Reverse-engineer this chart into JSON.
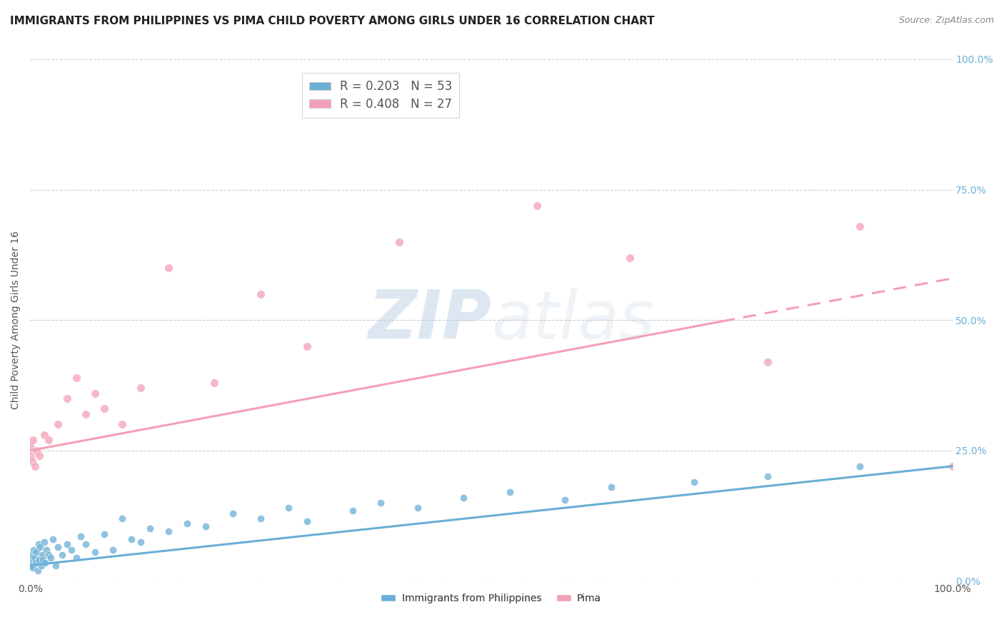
{
  "title": "IMMIGRANTS FROM PHILIPPINES VS PIMA CHILD POVERTY AMONG GIRLS UNDER 16 CORRELATION CHART",
  "source": "Source: ZipAtlas.com",
  "xlabel_bottom_left": "0.0%",
  "xlabel_bottom_right": "100.0%",
  "xlabel_label": "Immigrants from Philippines",
  "xlabel_label2": "Pima",
  "ylabel": "Child Poverty Among Girls Under 16",
  "watermark": "ZIPatlas",
  "legend_line1": "R = 0.203   N = 53",
  "legend_line2": "R = 0.408   N = 27",
  "legend_r1": "0.203",
  "legend_n1": "53",
  "legend_r2": "0.408",
  "legend_n2": "27",
  "blue_color": "#6aafd6",
  "pink_color": "#f4a0b5",
  "blue_trend_y0": 3.0,
  "blue_trend_y1": 22.0,
  "pink_trend_y0": 25.0,
  "pink_trend_y1": 58.0,
  "pink_dash_start_x": 75,
  "xmin": 0,
  "xmax": 100,
  "ymin": 0,
  "ymax": 100,
  "yticks": [
    0,
    25,
    50,
    75,
    100
  ],
  "ytick_labels_right": [
    "0.0%",
    "25.0%",
    "50.0%",
    "75.0%",
    "100.0%"
  ],
  "background_color": "#ffffff",
  "grid_color": "#cccccc",
  "title_fontsize": 11,
  "axis_label_fontsize": 10,
  "tick_fontsize": 10,
  "legend_fontsize": 12,
  "scatter_size_blue": 55,
  "scatter_size_pink": 70,
  "scatter_alpha": 0.75,
  "blue_scatter_x": [
    0.0,
    0.1,
    0.2,
    0.3,
    0.4,
    0.5,
    0.6,
    0.7,
    0.8,
    0.9,
    1.0,
    1.1,
    1.2,
    1.3,
    1.4,
    1.5,
    1.6,
    1.8,
    2.0,
    2.2,
    2.5,
    2.8,
    3.0,
    3.5,
    4.0,
    4.5,
    5.0,
    5.5,
    6.0,
    7.0,
    8.0,
    9.0,
    10.0,
    11.0,
    12.0,
    13.0,
    15.0,
    17.0,
    19.0,
    22.0,
    25.0,
    28.0,
    30.0,
    35.0,
    38.0,
    42.0,
    47.0,
    52.0,
    58.0,
    63.0,
    72.0,
    80.0,
    90.0
  ],
  "blue_scatter_y": [
    4.0,
    3.0,
    5.0,
    2.5,
    6.0,
    4.5,
    3.5,
    5.5,
    2.0,
    7.0,
    4.0,
    6.5,
    3.0,
    5.0,
    4.0,
    7.5,
    3.5,
    6.0,
    5.0,
    4.5,
    8.0,
    3.0,
    6.5,
    5.0,
    7.0,
    6.0,
    4.5,
    8.5,
    7.0,
    5.5,
    9.0,
    6.0,
    12.0,
    8.0,
    7.5,
    10.0,
    9.5,
    11.0,
    10.5,
    13.0,
    12.0,
    14.0,
    11.5,
    13.5,
    15.0,
    14.0,
    16.0,
    17.0,
    15.5,
    18.0,
    19.0,
    20.0,
    22.0
  ],
  "pink_scatter_x": [
    0.0,
    0.1,
    0.2,
    0.3,
    0.5,
    0.7,
    1.0,
    1.5,
    2.0,
    3.0,
    4.0,
    5.0,
    6.0,
    7.0,
    8.0,
    10.0,
    12.0,
    15.0,
    20.0,
    25.0,
    30.0,
    40.0,
    55.0,
    65.0,
    80.0,
    90.0,
    100.0
  ],
  "pink_scatter_y": [
    26.0,
    24.0,
    23.0,
    27.0,
    22.0,
    25.0,
    24.0,
    28.0,
    27.0,
    30.0,
    35.0,
    39.0,
    32.0,
    36.0,
    33.0,
    30.0,
    37.0,
    60.0,
    38.0,
    55.0,
    45.0,
    65.0,
    72.0,
    62.0,
    42.0,
    68.0,
    22.0
  ]
}
